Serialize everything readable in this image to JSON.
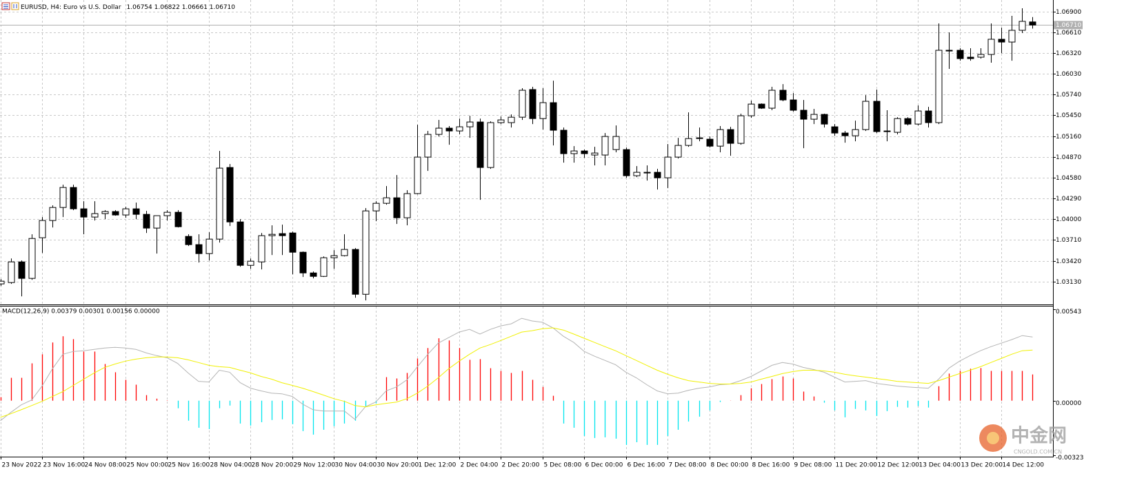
{
  "chart_data": [
    {
      "type": "candlestick",
      "title": "EURUSD, H4:  Euro vs U.S. Dollar",
      "subtitle": "1.06754 1.06822 1.06661 1.06710",
      "categories": [
        "23 Nov 2022",
        null,
        null,
        null,
        "23 Nov 16:00",
        null,
        null,
        null,
        "24 Nov 08:00",
        null,
        null,
        null,
        "25 Nov 00:00",
        null,
        null,
        null,
        "25 Nov 16:00",
        null,
        null,
        null,
        "28 Nov 04:00",
        null,
        null,
        null,
        "28 Nov 20:00",
        null,
        null,
        null,
        "29 Nov 12:00",
        null,
        null,
        null,
        "30 Nov 04:00",
        null,
        null,
        null,
        "30 Nov 20:00",
        null,
        null,
        null,
        "1 Dec 12:00",
        null,
        null,
        null,
        "2 Dec 04:00",
        null,
        null,
        null,
        "2 Dec 20:00",
        null,
        null,
        null,
        "5 Dec 08:00",
        null,
        null,
        null,
        "6 Dec 00:00",
        null,
        null,
        null,
        "6 Dec 16:00",
        null,
        null,
        null,
        "7 Dec 08:00",
        null,
        null,
        null,
        "8 Dec 00:00",
        null,
        null,
        null,
        "8 Dec 16:00",
        null,
        null,
        null,
        "9 Dec 08:00",
        null,
        null,
        null,
        "11 Dec 20:00",
        null,
        null,
        null,
        "12 Dec 12:00",
        null,
        null,
        null,
        "13 Dec 04:00",
        null,
        null,
        null,
        "13 Dec 20:00",
        null,
        null,
        null,
        "14 Dec 12:00",
        null,
        null,
        null
      ],
      "open": [
        1.03097,
        1.03116,
        1.03404,
        1.03174,
        1.03741,
        1.03982,
        1.04164,
        1.04443,
        1.04145,
        1.0403,
        1.04078,
        1.04107,
        1.04059,
        1.04145,
        1.04068,
        1.03876,
        1.04049,
        1.04097,
        1.0376,
        1.03645,
        1.0352,
        1.03722,
        1.04722,
        1.03962,
        1.03356,
        1.03404,
        1.0377,
        1.03799,
        1.03808,
        1.03539,
        1.0325,
        1.03202,
        1.03462,
        1.03491,
        1.03578,
        1.02952,
        1.04116,
        1.04222,
        1.04299,
        1.0402,
        1.04357,
        1.04867,
        1.05184,
        1.05271,
        1.05232,
        1.0529,
        1.05357,
        1.04722,
        1.05348,
        1.05348,
        1.05424,
        1.0581,
        1.05405,
        1.05627,
        1.05242,
        1.04915,
        1.04953,
        1.04896,
        1.04896,
        1.04972,
        1.04972,
        1.04607,
        1.04645,
        1.04655,
        1.04578,
        1.04867,
        1.0503,
        1.05126,
        1.05117,
        1.0502,
        1.05251,
        1.05059,
        1.05444,
        1.05607,
        1.0555,
        1.058,
        1.05665,
        1.05521,
        1.05396,
        1.05463,
        1.0529,
        1.05203,
        1.05165,
        1.05251,
        1.05646,
        1.05232,
        1.05213,
        1.05405,
        1.05328,
        1.05511,
        1.05348,
        1.06358,
        1.06358,
        1.06262,
        1.06262,
        1.063,
        1.06512,
        1.06473,
        1.06637,
        1.06754
      ],
      "high": [
        1.03164,
        1.03452,
        1.03424,
        1.03789,
        1.0403,
        1.04193,
        1.04482,
        1.04482,
        1.04251,
        1.04251,
        1.04126,
        1.04126,
        1.04174,
        1.04232,
        1.04116,
        1.04049,
        1.04126,
        1.04126,
        1.03789,
        1.03789,
        1.03818,
        1.04953,
        1.0477,
        1.04001,
        1.03452,
        1.03808,
        1.03914,
        1.03924,
        1.03828,
        1.03549,
        1.0327,
        1.03481,
        1.03568,
        1.03789,
        1.03597,
        1.04155,
        1.04251,
        1.04463,
        1.04617,
        1.04405,
        1.05319,
        1.05232,
        1.05386,
        1.053,
        1.05405,
        1.05444,
        1.05405,
        1.05367,
        1.05434,
        1.05463,
        1.05829,
        1.05848,
        1.05829,
        1.05934,
        1.0528,
        1.0502,
        1.04972,
        1.05011,
        1.05203,
        1.05309,
        1.05001,
        1.04742,
        1.04751,
        1.04703,
        1.05049,
        1.05136,
        1.05492,
        1.0528,
        1.05155,
        1.053,
        1.0529,
        1.05473,
        1.05656,
        1.05617,
        1.05848,
        1.05886,
        1.05761,
        1.05665,
        1.0554,
        1.05473,
        1.05328,
        1.05232,
        1.05376,
        1.05732,
        1.0581,
        1.05521,
        1.05424,
        1.05424,
        1.05588,
        1.05569,
        1.06733,
        1.06608,
        1.06387,
        1.06387,
        1.06387,
        1.06733,
        1.06675,
        1.06839,
        1.06945,
        1.06822
      ],
      "low": [
        1.03068,
        1.03097,
        1.02923,
        1.03154,
        1.03529,
        1.03885,
        1.0403,
        1.04126,
        1.03789,
        1.03982,
        1.04001,
        1.04049,
        1.0402,
        1.04001,
        1.03808,
        1.0352,
        1.03982,
        1.03885,
        1.03626,
        1.03395,
        1.03424,
        1.03674,
        1.03905,
        1.03337,
        1.03308,
        1.03299,
        1.035,
        1.035,
        1.03231,
        1.03193,
        1.03174,
        1.03193,
        1.03308,
        1.03481,
        1.02904,
        1.02866,
        1.03972,
        1.04203,
        1.03934,
        1.03914,
        1.04347,
        1.04674,
        1.05155,
        1.0504,
        1.05184,
        1.05136,
        1.0427,
        1.04703,
        1.05328,
        1.0528,
        1.05386,
        1.05328,
        1.05251,
        1.0503,
        1.0479,
        1.0479,
        1.04857,
        1.04751,
        1.04751,
        1.04934,
        1.04578,
        1.04588,
        1.0454,
        1.04415,
        1.04434,
        1.04847,
        1.05011,
        1.05088,
        1.05001,
        1.04934,
        1.04886,
        1.0504,
        1.05415,
        1.0554,
        1.05521,
        1.05646,
        1.05502,
        1.04992,
        1.05328,
        1.0528,
        1.05165,
        1.05069,
        1.05088,
        1.05232,
        1.05203,
        1.05088,
        1.05184,
        1.05309,
        1.05309,
        1.0528,
        1.05328,
        1.06098,
        1.06213,
        1.06213,
        1.06242,
        1.06185,
        1.06319,
        1.06213,
        1.06598,
        1.06661
      ],
      "close": [
        1.03135,
        1.03404,
        1.03174,
        1.03731,
        1.03982,
        1.04164,
        1.04443,
        1.04145,
        1.0403,
        1.04078,
        1.04107,
        1.04059,
        1.04145,
        1.04068,
        1.03876,
        1.04049,
        1.04097,
        1.03895,
        1.03645,
        1.0352,
        1.03722,
        1.04713,
        1.03962,
        1.03356,
        1.03414,
        1.0377,
        1.03789,
        1.0377,
        1.03539,
        1.0325,
        1.03202,
        1.03462,
        1.03491,
        1.03578,
        1.02952,
        1.04116,
        1.04222,
        1.04299,
        1.0402,
        1.04357,
        1.04867,
        1.05184,
        1.05271,
        1.05232,
        1.0529,
        1.05357,
        1.04722,
        1.05348,
        1.05386,
        1.05424,
        1.058,
        1.05405,
        1.05627,
        1.05242,
        1.04915,
        1.04953,
        1.04915,
        1.04924,
        1.05155,
        1.05155,
        1.04607,
        1.04655,
        1.04655,
        1.04578,
        1.04867,
        1.0503,
        1.05126,
        1.05136,
        1.0502,
        1.05251,
        1.05059,
        1.05444,
        1.05607,
        1.0555,
        1.058,
        1.05665,
        1.05521,
        1.05396,
        1.05463,
        1.05328,
        1.05203,
        1.05165,
        1.05251,
        1.05646,
        1.05223,
        1.05223,
        1.05405,
        1.05328,
        1.05511,
        1.05348,
        1.06358,
        1.06348,
        1.06242,
        1.06242,
        1.063,
        1.06512,
        1.06473,
        1.06637,
        1.06762,
        1.0671
      ],
      "up_color": "#ffffff",
      "down_color": "#000000",
      "ylim": [
        1.0281,
        1.0706
      ],
      "yticks": [
        {
          "value": 1.069,
          "label": "1.06900"
        },
        {
          "value": 1.0661,
          "label": "1.06610"
        },
        {
          "value": 1.0632,
          "label": "1.06320"
        },
        {
          "value": 1.0603,
          "label": "1.06030"
        },
        {
          "value": 1.0574,
          "label": "1.05740"
        },
        {
          "value": 1.0545,
          "label": "1.05450"
        },
        {
          "value": 1.0516,
          "label": "1.05160"
        },
        {
          "value": 1.0487,
          "label": "1.04870"
        },
        {
          "value": 1.0458,
          "label": "1.04580"
        },
        {
          "value": 1.0429,
          "label": "1.04290"
        },
        {
          "value": 1.04,
          "label": "1.04000"
        },
        {
          "value": 1.0371,
          "label": "1.03710"
        },
        {
          "value": 1.0342,
          "label": "1.03420"
        },
        {
          "value": 1.0313,
          "label": "1.03130"
        }
      ],
      "last_price": {
        "value": 1.0671,
        "label": "1.06710"
      },
      "grid": true
    },
    {
      "type": "macd",
      "title": "MACD(12,26,9) 0.00379 0.00301 0.00156 0.00000",
      "ylim": [
        -0.00333,
        0.00564
      ],
      "yticks": [
        {
          "value": 0.00543,
          "label": "0.00543"
        },
        {
          "value": 0,
          "label": "0.00000"
        },
        {
          "value": -0.00323,
          "label": "-0.00323"
        }
      ],
      "histogram": {
        "pos_color": "#ff0000",
        "neg_color": "#00e5ee",
        "values": [
          0.00021,
          0.00136,
          0.00136,
          0.00222,
          0.00276,
          0.00346,
          0.00383,
          0.00366,
          0.00292,
          0.00292,
          0.00218,
          0.00169,
          0.00124,
          0.00095,
          0.00033,
          0.00012,
          2e-05,
          -0.00045,
          -0.00119,
          -0.00161,
          -0.00169,
          -0.00045,
          -0.00029,
          -0.00136,
          -0.00148,
          -0.00128,
          -0.00115,
          -0.00111,
          -0.0014,
          -0.00181,
          -0.00202,
          -0.00173,
          -0.00152,
          -0.00136,
          -0.00119,
          -0.00037,
          -0.00016,
          0.0014,
          0.00132,
          0.00165,
          0.00251,
          0.00313,
          0.00371,
          0.00358,
          0.00313,
          0.00243,
          0.00247,
          0.00193,
          0.00177,
          0.00165,
          0.00177,
          0.00124,
          0.00082,
          0.00029,
          -0.00136,
          -0.00161,
          -0.0021,
          -0.00222,
          -0.00218,
          -0.00226,
          -0.00263,
          -0.00247,
          -0.00263,
          -0.00263,
          -0.0021,
          -0.00173,
          -0.00124,
          -0.00095,
          -0.00058,
          -8e-05,
          1e-05,
          0.00033,
          0.00074,
          0.00099,
          0.00128,
          0.00144,
          0.00132,
          0.00054,
          0.00025,
          -0.00012,
          -0.00058,
          -0.00099,
          -0.00049,
          -0.00058,
          -0.00091,
          -0.00062,
          -0.00037,
          -0.00041,
          -0.00033,
          -0.00041,
          0.00086,
          0.00161,
          0.00177,
          0.0019,
          0.00194,
          0.00177,
          0.00177,
          0.00177,
          0.00177,
          0.00156
        ]
      },
      "main": {
        "color": "#b4b4b4",
        "values": [
          -0.00119,
          -0.0007,
          -0.00025,
          4e-05,
          0.00087,
          0.0019,
          0.00276,
          0.00293,
          0.00297,
          0.00305,
          0.00313,
          0.00317,
          0.00313,
          0.00305,
          0.00284,
          0.00268,
          0.00255,
          0.00222,
          0.00165,
          0.00115,
          0.00111,
          0.00181,
          0.00169,
          0.00107,
          0.00074,
          0.00058,
          0.00045,
          0.00041,
          0.00025,
          -0.00021,
          -0.00054,
          -0.00062,
          -0.00062,
          -0.00062,
          -0.00111,
          -0.00037,
          -8e-05,
          0.00058,
          0.00082,
          0.00124,
          0.00202,
          0.00276,
          0.00342,
          0.00375,
          0.00408,
          0.00424,
          0.00396,
          0.00424,
          0.00445,
          0.00457,
          0.0049,
          0.00474,
          0.00466,
          0.00433,
          0.00383,
          0.00346,
          0.00293,
          0.00264,
          0.00239,
          0.00214,
          0.00169,
          0.00136,
          0.00095,
          0.00058,
          0.00041,
          0.00045,
          0.00062,
          0.00074,
          0.00082,
          0.00095,
          0.00099,
          0.00119,
          0.00144,
          0.00177,
          0.0021,
          0.00227,
          0.00218,
          0.00198,
          0.00185,
          0.00169,
          0.0014,
          0.00111,
          0.00115,
          0.00119,
          0.00103,
          0.00095,
          0.00087,
          0.00082,
          0.00078,
          0.00074,
          0.00128,
          0.00194,
          0.00235,
          0.00268,
          0.00297,
          0.00321,
          0.00342,
          0.00363,
          0.00387,
          0.00379
        ]
      },
      "signal": {
        "color": "#f0f000",
        "values": [
          -0.00099,
          -0.00078,
          -0.00054,
          -0.00029,
          -4e-05,
          0.00025,
          0.00054,
          0.00091,
          0.00128,
          0.00165,
          0.00198,
          0.00218,
          0.00235,
          0.00247,
          0.00255,
          0.0026,
          0.0026,
          0.00255,
          0.00243,
          0.00227,
          0.0021,
          0.00202,
          0.00198,
          0.00181,
          0.00165,
          0.00144,
          0.00128,
          0.00107,
          0.00091,
          0.00074,
          0.00054,
          0.00033,
          0.00012,
          -4e-05,
          -0.00029,
          -0.00037,
          -0.00025,
          -0.00016,
          -8e-05,
          0.00012,
          0.00045,
          0.00087,
          0.00136,
          0.0019,
          0.00235,
          0.00276,
          0.00313,
          0.00334,
          0.00358,
          0.00383,
          0.00408,
          0.00416,
          0.00428,
          0.00433,
          0.0042,
          0.00396,
          0.00371,
          0.00346,
          0.00321,
          0.00297,
          0.00268,
          0.00239,
          0.0021,
          0.00181,
          0.00157,
          0.00136,
          0.00119,
          0.00111,
          0.00103,
          0.00099,
          0.00099,
          0.00103,
          0.00111,
          0.00128,
          0.00144,
          0.00161,
          0.00173,
          0.00181,
          0.00181,
          0.00177,
          0.00169,
          0.00157,
          0.00148,
          0.0014,
          0.00132,
          0.00124,
          0.00115,
          0.00111,
          0.00107,
          0.00103,
          0.00119,
          0.0014,
          0.00161,
          0.00181,
          0.00202,
          0.00227,
          0.00251,
          0.00276,
          0.00297,
          0.00301
        ]
      },
      "grid": true
    }
  ],
  "watermark": {
    "name": "中金网",
    "site": "CNGOLD.COM.CN"
  }
}
